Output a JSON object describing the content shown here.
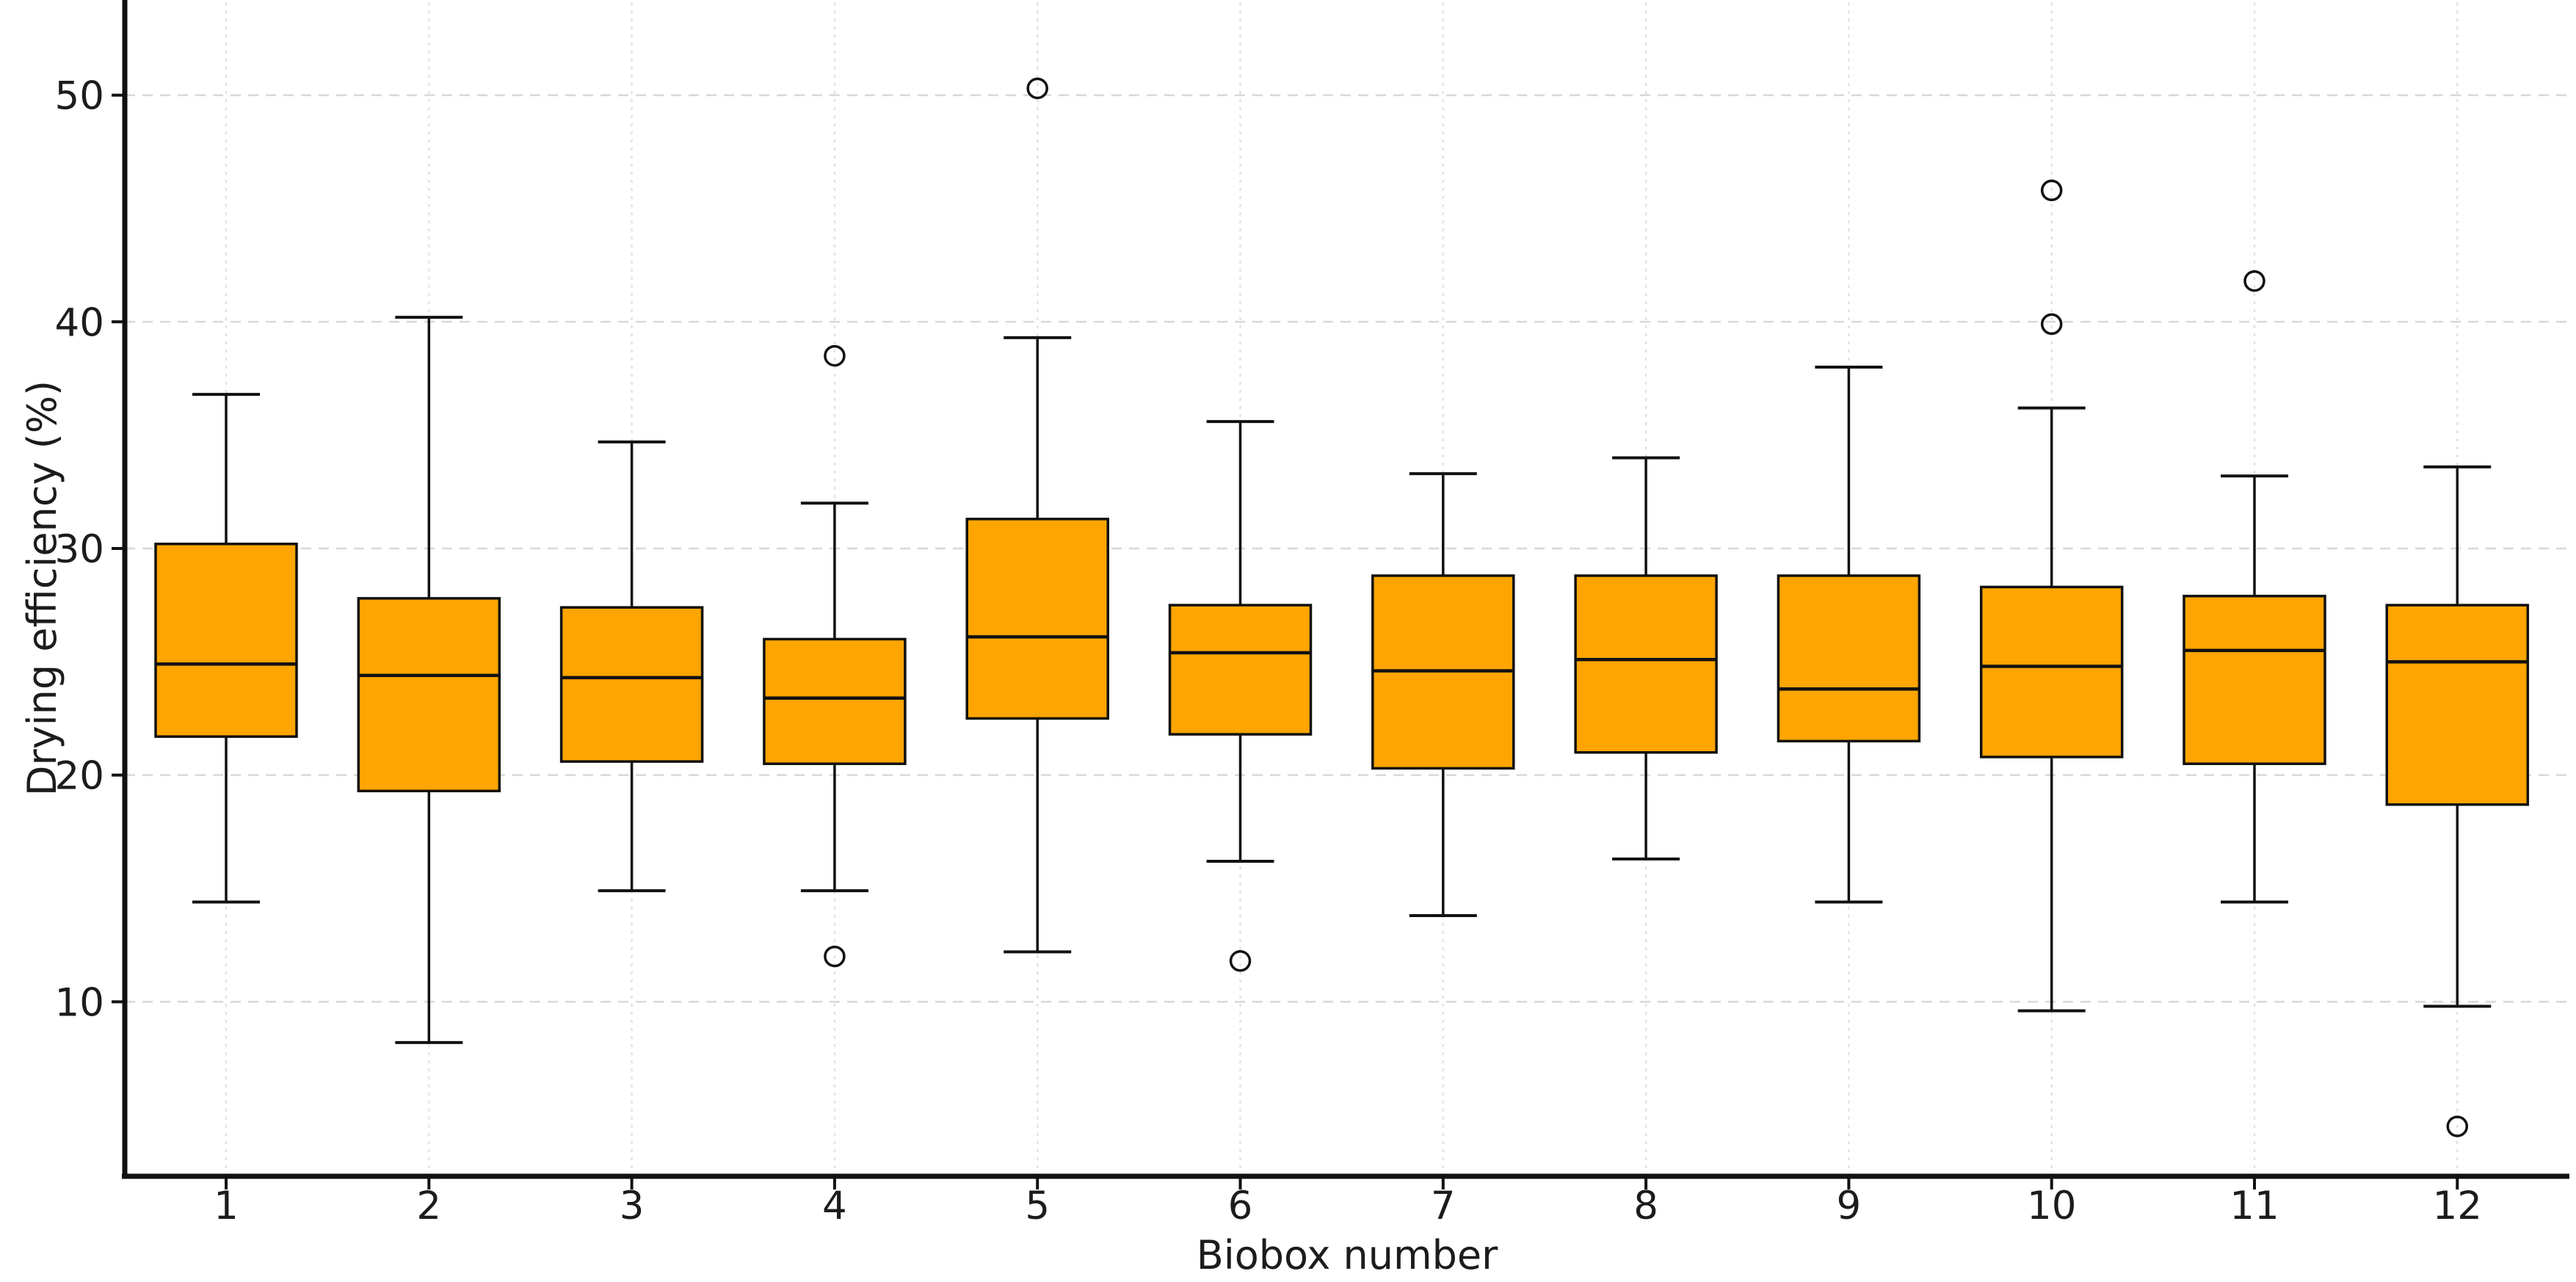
{
  "chart_data": {
    "type": "boxplot",
    "title": "",
    "xlabel": "Biobox number",
    "ylabel": "Drying efficiency (%)",
    "categories": [
      "1",
      "2",
      "3",
      "4",
      "5",
      "6",
      "7",
      "8",
      "9",
      "10",
      "11",
      "12"
    ],
    "yticks": [
      10,
      20,
      30,
      40,
      50
    ],
    "ylim": [
      2.3,
      54.2
    ],
    "grid": "horizontal dashed + vertical dotted, light gray",
    "legend": "none",
    "boxes": [
      {
        "category": "1",
        "whisker_low": 14.4,
        "q1": 21.7,
        "median": 24.9,
        "q3": 30.2,
        "whisker_high": 36.8,
        "outliers": []
      },
      {
        "category": "2",
        "whisker_low": 8.2,
        "q1": 19.3,
        "median": 24.4,
        "q3": 27.8,
        "whisker_high": 40.2,
        "outliers": []
      },
      {
        "category": "3",
        "whisker_low": 14.9,
        "q1": 20.6,
        "median": 24.3,
        "q3": 27.4,
        "whisker_high": 34.7,
        "outliers": []
      },
      {
        "category": "4",
        "whisker_low": 14.9,
        "q1": 20.5,
        "median": 23.4,
        "q3": 26.0,
        "whisker_high": 32.0,
        "outliers": [
          38.5,
          12.0
        ]
      },
      {
        "category": "5",
        "whisker_low": 12.2,
        "q1": 22.5,
        "median": 26.1,
        "q3": 31.3,
        "whisker_high": 39.3,
        "outliers": [
          50.3
        ]
      },
      {
        "category": "6",
        "whisker_low": 16.2,
        "q1": 21.8,
        "median": 25.4,
        "q3": 27.5,
        "whisker_high": 35.6,
        "outliers": [
          11.8
        ]
      },
      {
        "category": "7",
        "whisker_low": 13.8,
        "q1": 20.3,
        "median": 24.6,
        "q3": 28.8,
        "whisker_high": 33.3,
        "outliers": []
      },
      {
        "category": "8",
        "whisker_low": 16.3,
        "q1": 21.0,
        "median": 25.1,
        "q3": 28.8,
        "whisker_high": 34.0,
        "outliers": []
      },
      {
        "category": "9",
        "whisker_low": 14.4,
        "q1": 21.5,
        "median": 23.8,
        "q3": 28.8,
        "whisker_high": 38.0,
        "outliers": []
      },
      {
        "category": "10",
        "whisker_low": 9.6,
        "q1": 20.8,
        "median": 24.8,
        "q3": 28.3,
        "whisker_high": 36.2,
        "outliers": [
          45.8,
          39.9
        ]
      },
      {
        "category": "11",
        "whisker_low": 14.4,
        "q1": 20.5,
        "median": 25.5,
        "q3": 27.9,
        "whisker_high": 33.2,
        "outliers": [
          41.8
        ]
      },
      {
        "category": "12",
        "whisker_low": 9.8,
        "q1": 18.7,
        "median": 25.0,
        "q3": 27.5,
        "whisker_high": 33.6,
        "outliers": [
          4.5
        ]
      }
    ],
    "colors": {
      "box_fill": "#FFA500",
      "line": "#111111",
      "grid_h": "#d8d8d8",
      "grid_v": "#e2e2e2",
      "text": "#1c1c1c",
      "background": "#ffffff"
    }
  }
}
